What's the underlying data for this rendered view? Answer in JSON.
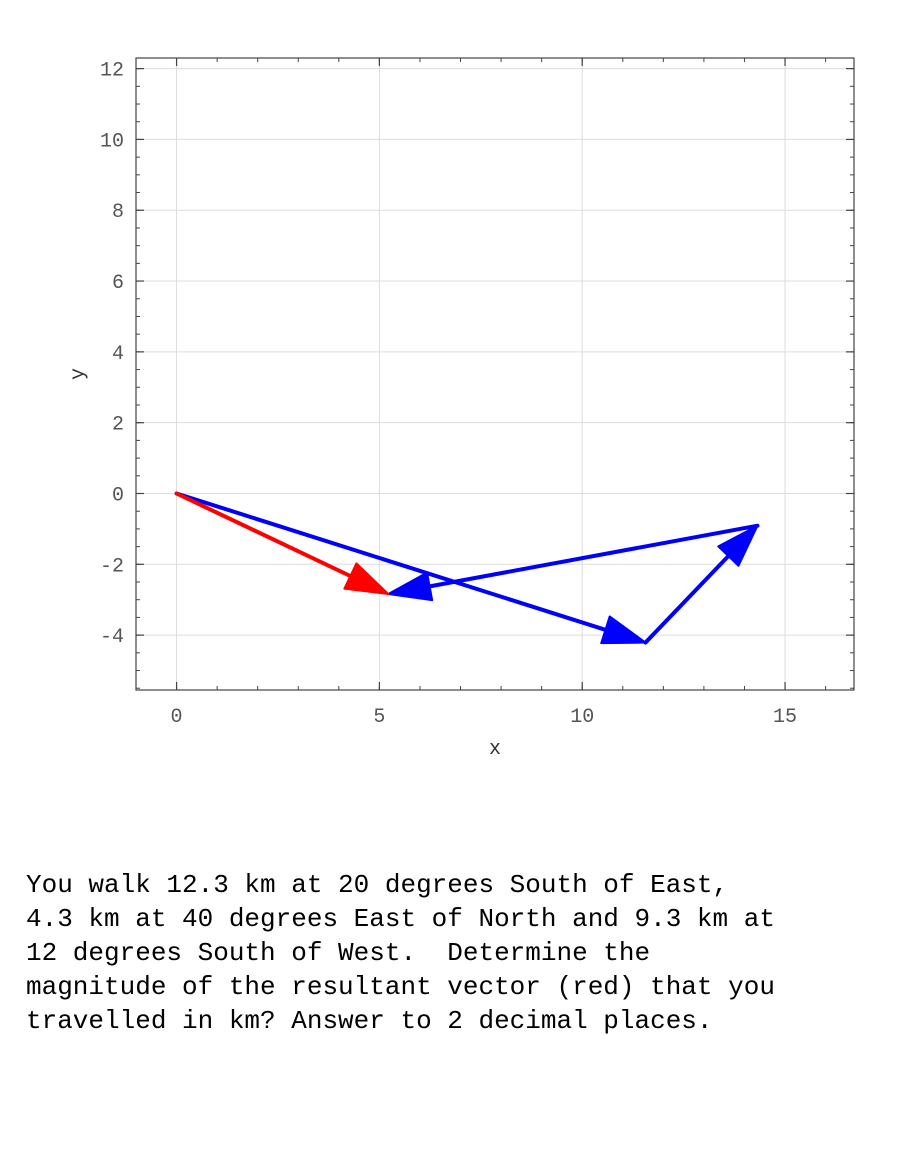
{
  "chart_data": {
    "type": "vector",
    "xlabel": "x",
    "ylabel": "y",
    "xlim": [
      -1,
      16.7
    ],
    "ylim": [
      -5.55,
      12.3
    ],
    "xticks": [
      0,
      5,
      10,
      15
    ],
    "yticks": [
      -4,
      -2,
      0,
      2,
      4,
      6,
      8,
      10,
      12
    ],
    "grid": true,
    "vectors": [
      {
        "from": [
          0,
          0
        ],
        "to": [
          11.56,
          -4.21
        ],
        "color": "#0000ff"
      },
      {
        "from": [
          11.56,
          -4.21
        ],
        "to": [
          14.32,
          -0.91
        ],
        "color": "#0000ff"
      },
      {
        "from": [
          14.32,
          -0.91
        ],
        "to": [
          5.22,
          -2.84
        ],
        "color": "#0000ff"
      },
      {
        "from": [
          0,
          0
        ],
        "to": [
          5.22,
          -2.84
        ],
        "color": "#ff0000"
      }
    ]
  },
  "question": {
    "lines": [
      "You walk 12.3 km at 20 degrees South of East,",
      "4.3 km at 40 degrees East of North and 9.3 km at",
      "12 degrees South of West.  Determine the",
      "magnitude of the resultant vector (red) that you",
      "travelled in km? Answer to 2 decimal places."
    ]
  }
}
